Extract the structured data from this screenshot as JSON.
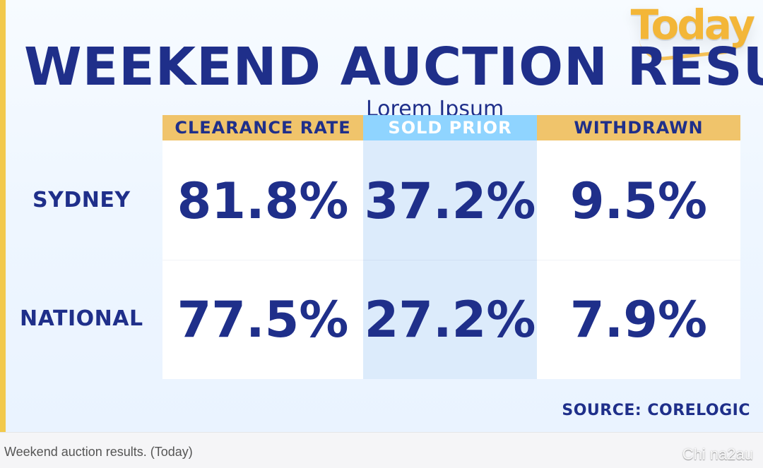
{
  "brand": {
    "logo_text": "Today"
  },
  "title": "WEEKEND AUCTION RESULTS",
  "overlay_text": "Lorem Ipsum",
  "chart_data": {
    "type": "table",
    "columns": [
      "CLEARANCE RATE",
      "SOLD PRIOR",
      "WITHDRAWN"
    ],
    "rows": [
      {
        "label": "SYDNEY",
        "values": [
          "81.8%",
          "37.2%",
          "9.5%"
        ]
      },
      {
        "label": "NATIONAL",
        "values": [
          "77.5%",
          "27.2%",
          "7.9%"
        ]
      }
    ],
    "source": "SOURCE: CORELOGIC"
  },
  "caption": {
    "text": "Weekend auction results. (Today)",
    "watermark": "Chi na2au"
  },
  "colors": {
    "navy": "#1f2f8a",
    "gold": "#f0c46b",
    "sky": "#8fd4ff",
    "sold_column": "#dcebfb",
    "logo": "#f3b638"
  }
}
